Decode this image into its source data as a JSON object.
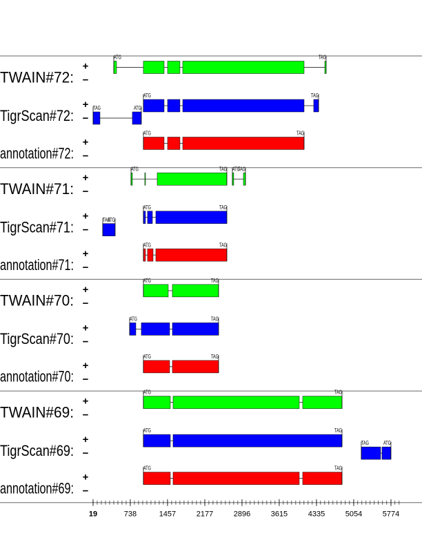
{
  "chart_data": {
    "type": "tracks",
    "strand_labels": [
      "+",
      "−"
    ],
    "xlim": [
      -1779,
      6373
    ],
    "xticks": [
      19,
      738,
      1457,
      2177,
      2896,
      3615,
      4335,
      5054,
      5774
    ],
    "groups": [
      {
        "tracks": [
          {
            "name": "TWAIN#72:",
            "color": "#00ff00",
            "genes": [
              {
                "strand": "+",
                "start_label": "ATG",
                "end_label": "TAG",
                "exons": [
                  [
                    419,
                    472
                  ],
                  [
                    991,
                    1391
                  ],
                  [
                    1458,
                    1697
                  ],
                  [
                    1751,
                    4095
                  ],
                  [
                    4495,
                    4521
                  ]
                ]
              }
            ]
          },
          {
            "name": "TigrScan#72:",
            "color": "#0000ff",
            "genes": [
              {
                "strand": "-",
                "start_label": "TAG",
                "end_label": "ATG",
                "exons": [
                  [
                    19,
                    152
                  ],
                  [
                    778,
                    951
                  ]
                ]
              },
              {
                "strand": "+",
                "start_label": "ATG",
                "end_label": "TAG",
                "exons": [
                  [
                    991,
                    1391
                  ],
                  [
                    1458,
                    1697
                  ],
                  [
                    1751,
                    4095
                  ],
                  [
                    4281,
                    4375
                  ]
                ]
              }
            ]
          },
          {
            "name": "annotation#72:",
            "color": "#ff0000",
            "genes": [
              {
                "strand": "+",
                "start_label": "ATG",
                "end_label": "TAG",
                "exons": [
                  [
                    991,
                    1391
                  ],
                  [
                    1458,
                    1697
                  ],
                  [
                    1751,
                    4095
                  ]
                ]
              }
            ]
          }
        ]
      },
      {
        "tracks": [
          {
            "name": "TWAIN#71:",
            "color": "#00ff00",
            "genes": [
              {
                "strand": "+",
                "start_label": "ATG",
                "end_label": "TAG",
                "exons": [
                  [
                    752,
                    778
                  ],
                  [
                    1018,
                    1031
                  ],
                  [
                    1258,
                    2603
                  ]
                ]
              },
              {
                "strand": "+",
                "start_label": "ATG",
                "end_label": "TAG",
                "exons": [
                  [
                    2710,
                    2736
                  ],
                  [
                    2923,
                    2963
                  ]
                ]
              }
            ]
          },
          {
            "name": "TigrScan#71:",
            "color": "#0000ff",
            "genes": [
              {
                "strand": "-",
                "start_label": "TAG",
                "end_label": "ATG",
                "exons": [
                  [
                    205,
                    445
                  ]
                ]
              },
              {
                "strand": "+",
                "start_label": "ATG",
                "end_label": "TAG",
                "exons": [
                  [
                    991,
                    1031
                  ],
                  [
                    1071,
                    1165
                  ],
                  [
                    1231,
                    2603
                  ]
                ]
              }
            ]
          },
          {
            "name": "annotation#71:",
            "color": "#ff0000",
            "genes": [
              {
                "strand": "+",
                "start_label": "ATG",
                "end_label": "TAG",
                "exons": [
                  [
                    991,
                    1031
                  ],
                  [
                    1071,
                    1178
                  ],
                  [
                    1231,
                    2603
                  ]
                ]
              }
            ]
          }
        ]
      },
      {
        "tracks": [
          {
            "name": "TWAIN#70:",
            "color": "#00ff00",
            "genes": [
              {
                "strand": "+",
                "start_label": "ATG",
                "end_label": "TAG",
                "exons": [
                  [
                    991,
                    1471
                  ],
                  [
                    1551,
                    2443
                  ]
                ]
              }
            ]
          },
          {
            "name": "TigrScan#70:",
            "color": "#0000ff",
            "genes": [
              {
                "strand": "+",
                "start_label": "ATG",
                "end_label": "TAG",
                "exons": [
                  [
                    725,
                    845
                  ],
                  [
                    951,
                    1498
                  ],
                  [
                    1551,
                    2443
                  ]
                ]
              }
            ]
          },
          {
            "name": "annotation#70:",
            "color": "#ff0000",
            "genes": [
              {
                "strand": "+",
                "start_label": "ATG",
                "end_label": "TAG",
                "exons": [
                  [
                    991,
                    1498
                  ],
                  [
                    1551,
                    2443
                  ]
                ]
              }
            ]
          }
        ]
      },
      {
        "tracks": [
          {
            "name": "TWAIN#69:",
            "color": "#00ff00",
            "genes": [
              {
                "strand": "+",
                "start_label": "ATG",
                "end_label": "TAG",
                "exons": [
                  [
                    991,
                    1511
                  ],
                  [
                    1564,
                    4002
                  ],
                  [
                    4068,
                    4828
                  ]
                ]
              }
            ]
          },
          {
            "name": "TigrScan#69:",
            "color": "#0000ff",
            "genes": [
              {
                "strand": "+",
                "start_label": "ATG",
                "end_label": "TAG",
                "exons": [
                  [
                    991,
                    1511
                  ],
                  [
                    1564,
                    4828
                  ]
                ]
              },
              {
                "strand": "-",
                "start_label": "TAG",
                "end_label": "ATG",
                "exons": [
                  [
                    5200,
                    5573
                  ],
                  [
                    5600,
                    5773
                  ]
                ]
              }
            ]
          },
          {
            "name": "annotation#69:",
            "color": "#ff0000",
            "genes": [
              {
                "strand": "+",
                "start_label": "ATG",
                "end_label": "TAG",
                "exons": [
                  [
                    991,
                    1511
                  ],
                  [
                    1564,
                    4002
                  ],
                  [
                    4068,
                    4828
                  ]
                ]
              }
            ]
          }
        ]
      }
    ]
  }
}
